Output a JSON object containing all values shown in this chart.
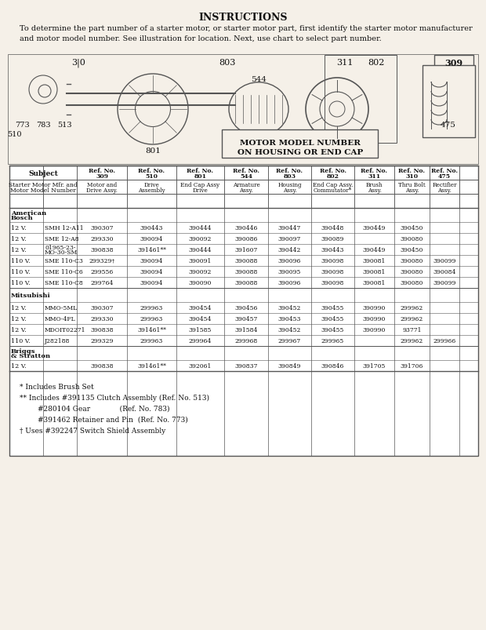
{
  "title": "INSTRUCTIONS",
  "instruction_text": "To determine the part number of a starter motor, or starter motor part, first identify the starter motor manufacturer\nand motor model number. See illustration for location. Next, use chart to select part number.",
  "diagram_labels": [
    "310",
    "803",
    "311",
    "802",
    "309",
    "773",
    "783",
    "513",
    "510",
    "801",
    "544",
    "475"
  ],
  "motor_model_note": "MOTOR MODEL NUMBER\nON HOUSING OR END CAP",
  "col_headers": [
    [
      "Subject",
      "",
      "Ref. No.\n309",
      "Ref. No.\n510",
      "Ref. No.\n801",
      "Ref. No.\n544",
      "Ref. No.\n803",
      "Ref. No.\n802",
      "Ref. No.\n311",
      "Ref. No.\n310",
      "Ref. No.\n475"
    ],
    [
      "Starter Motor Mfr. and\nMotor Model Number",
      "",
      "Motor and\nDrive Assy.",
      "Drive\nAssembly",
      "End Cap Assy\nDrive",
      "Armature\nAssy.",
      "Housing\nAssy.",
      "End Cap Assy.\nCommutator*",
      "Brush\nAssy.",
      "Thru Bolt\nAssy.",
      "Rectifier\nAssy."
    ]
  ],
  "sections": [
    {
      "name": "American\nBosch",
      "rows": [
        [
          "12 V.",
          "SMH 12-A11",
          "390307",
          "390443",
          "390444",
          "390446",
          "390447",
          "390448",
          "390449",
          "390450",
          ""
        ],
        [
          "12 V.",
          "SME 12-A8",
          "299330",
          "390094",
          "390092",
          "390086",
          "390097",
          "390089",
          "",
          "390080",
          ""
        ],
        [
          "12 V.",
          "01965-23-\nMO-30-SM",
          "390838",
          "391461**",
          "390444",
          "391607",
          "390442",
          "390443",
          "390449",
          "390450",
          ""
        ],
        [
          "110 V.",
          "SME 110-C3",
          "299329†",
          "390094",
          "390091",
          "390088",
          "390096",
          "390098",
          "390081",
          "390080",
          "390099"
        ],
        [
          "110 V.",
          "SME 110-C6",
          "299556",
          "390094",
          "390092",
          "390088",
          "390095",
          "390098",
          "390081",
          "390080",
          "390084"
        ],
        [
          "110 V.",
          "SME 110-C8",
          "299764",
          "390094",
          "390090",
          "390088",
          "390096",
          "390098",
          "390081",
          "390080",
          "390099"
        ]
      ]
    },
    {
      "name": "Mitsubishi",
      "rows": [
        [
          "12 V.",
          "MMO-5ML",
          "390307",
          "299963",
          "390454",
          "390456",
          "390452",
          "390455",
          "390990",
          "299962",
          ""
        ],
        [
          "12 V.",
          "MMO-4FL",
          "299330",
          "299963",
          "390454",
          "390457",
          "390453",
          "390455",
          "390990",
          "299962",
          ""
        ],
        [
          "12 V.",
          "MDOIT02271",
          "390838",
          "391461**",
          "391585",
          "391584",
          "390452",
          "390455",
          "390990",
          "93771",
          ""
        ],
        [
          "110 V.",
          "J282188",
          "299329",
          "299963",
          "299964",
          "299968",
          "299967",
          "299965",
          "",
          "299962",
          "299966"
        ]
      ]
    },
    {
      "name": "Briggs\n& Stratton",
      "rows": [
        [
          "12 V.",
          "",
          "390838",
          "391461**",
          "392061",
          "390837",
          "390849",
          "390846",
          "391705",
          "391706",
          ""
        ]
      ]
    }
  ],
  "footnotes": [
    "* Includes Brush Set",
    "** Includes #391135 Clutch Assembly (Ref. No. 513)",
    "        #280104 Gear             (Ref. No. 783)",
    "        #391462 Retainer and Pin  (Ref. No. 773)",
    "† Uses #392247 Switch Shield Assembly"
  ],
  "bg_color": "#f5f0e8",
  "line_color": "#555555",
  "text_color": "#111111"
}
